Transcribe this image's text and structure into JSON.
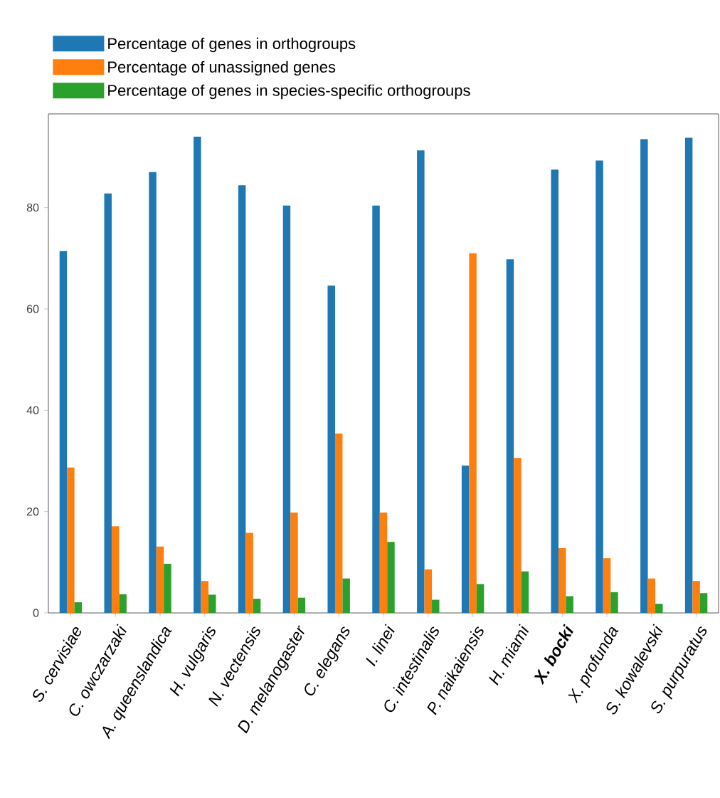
{
  "chart_data": {
    "type": "bar",
    "categories": [
      "S. cervisiae",
      "C. owczarzaki",
      "A. queenslandica",
      "H. vulgaris",
      "N. vectensis",
      "D. melanogaster",
      "C. elegans",
      "I. linei",
      "C. intestinalis",
      "P. naikaiensis",
      "H. miami",
      "**X. bocki**",
      "X. profunda",
      "S. kowalevski",
      "S. purpuratus"
    ],
    "series": [
      {
        "name": "Percentage of genes in orthogroups",
        "color": "#1f77b4",
        "values": [
          71.4,
          82.8,
          87.0,
          94.0,
          84.4,
          80.4,
          64.6,
          80.4,
          91.3,
          29.1,
          69.8,
          87.5,
          89.3,
          93.5,
          93.8
        ]
      },
      {
        "name": "Percentage of unassigned genes",
        "color": "#ff7f0e",
        "values": [
          28.7,
          17.1,
          13.1,
          6.3,
          15.8,
          19.8,
          35.4,
          19.8,
          8.6,
          71.0,
          30.6,
          12.8,
          10.8,
          6.8,
          6.3
        ]
      },
      {
        "name": "Percentage of genes in species-specific orthogroups",
        "color": "#2ca02c",
        "values": [
          2.1,
          3.7,
          9.7,
          3.6,
          2.8,
          3.0,
          6.8,
          14.0,
          2.6,
          5.7,
          8.2,
          3.3,
          4.1,
          1.8,
          3.9
        ]
      }
    ],
    "ylim": [
      0,
      98.5
    ],
    "yticks": [
      0,
      20,
      40,
      60,
      80
    ],
    "grid": false,
    "legend": "top left"
  }
}
